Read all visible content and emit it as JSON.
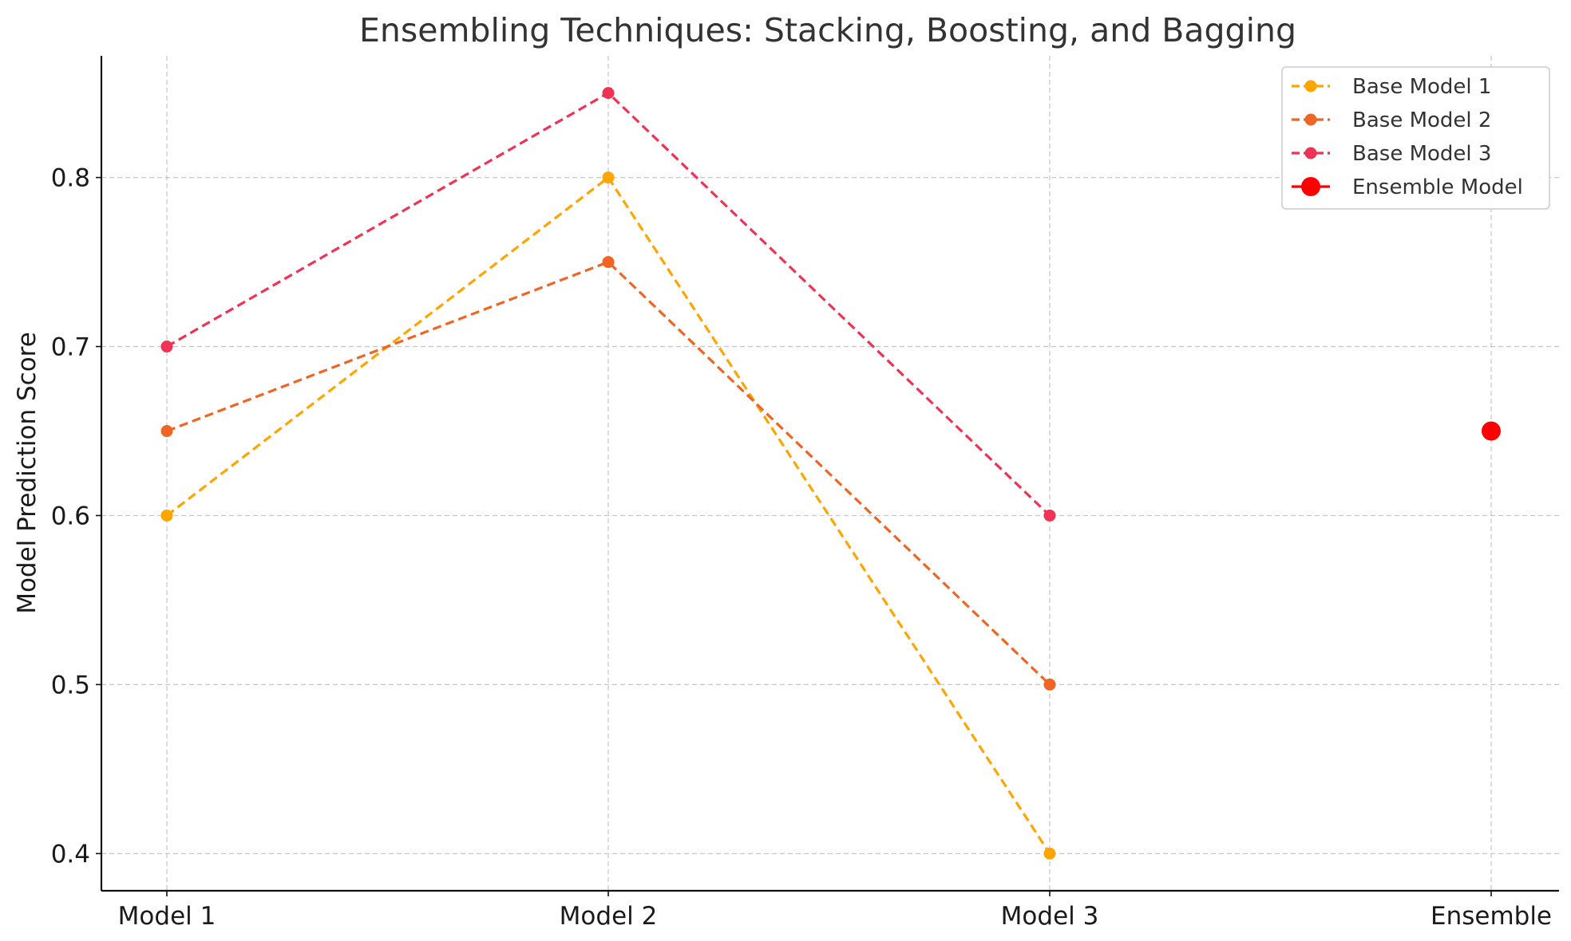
{
  "chart_data": {
    "type": "line",
    "title": "Ensembling Techniques: Stacking, Boosting, and Bagging",
    "xlabel": "",
    "ylabel": "Model Prediction Score",
    "categories": [
      "Model 1",
      "Model 2",
      "Model 3",
      "Ensemble"
    ],
    "y_ticks": [
      "0.4",
      "0.5",
      "0.6",
      "0.7",
      "0.8"
    ],
    "ylim": [
      0.378,
      0.872
    ],
    "grid": true,
    "legend_position": "top-right",
    "series": [
      {
        "name": "Base Model 1",
        "color": "#FFA500",
        "style": "dashed",
        "values": [
          0.6,
          0.8,
          0.4,
          null
        ]
      },
      {
        "name": "Base Model 2",
        "color": "#F06424",
        "style": "dashed",
        "values": [
          0.65,
          0.75,
          0.5,
          null
        ]
      },
      {
        "name": "Base Model 3",
        "color": "#EE3355",
        "style": "dashed",
        "values": [
          0.7,
          0.85,
          0.6,
          null
        ]
      },
      {
        "name": "Ensemble Model",
        "color": "#FF0000",
        "style": "solid",
        "values": [
          null,
          null,
          null,
          0.65
        ]
      }
    ]
  }
}
